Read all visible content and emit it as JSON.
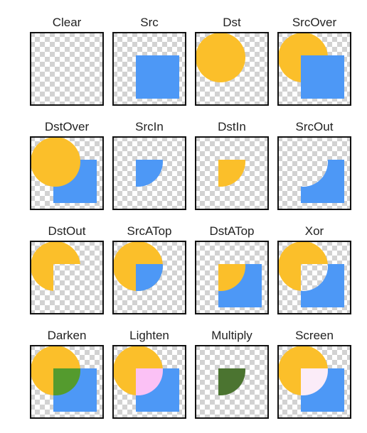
{
  "colors": {
    "dst": "#FBBF2A",
    "src": "#4D98F6",
    "checker_light": "#FFFFFF",
    "checker_dark": "#D2D2D2",
    "border": "#111111",
    "darken_overlap": "#549B2E",
    "lighten_overlap": "#FBC1F5",
    "multiply_overlap": "#4B7430",
    "screen_overlap": "#FBECF8"
  },
  "modes": [
    {
      "label": "Clear",
      "name": "clear"
    },
    {
      "label": "Src",
      "name": "src"
    },
    {
      "label": "Dst",
      "name": "dst"
    },
    {
      "label": "SrcOver",
      "name": "src-over"
    },
    {
      "label": "DstOver",
      "name": "dst-over"
    },
    {
      "label": "SrcIn",
      "name": "src-in"
    },
    {
      "label": "DstIn",
      "name": "dst-in"
    },
    {
      "label": "SrcOut",
      "name": "src-out"
    },
    {
      "label": "DstOut",
      "name": "dst-out"
    },
    {
      "label": "SrcATop",
      "name": "src-atop"
    },
    {
      "label": "DstATop",
      "name": "dst-atop"
    },
    {
      "label": "Xor",
      "name": "xor"
    },
    {
      "label": "Darken",
      "name": "darken"
    },
    {
      "label": "Lighten",
      "name": "lighten"
    },
    {
      "label": "Multiply",
      "name": "multiply"
    },
    {
      "label": "Screen",
      "name": "screen"
    }
  ]
}
